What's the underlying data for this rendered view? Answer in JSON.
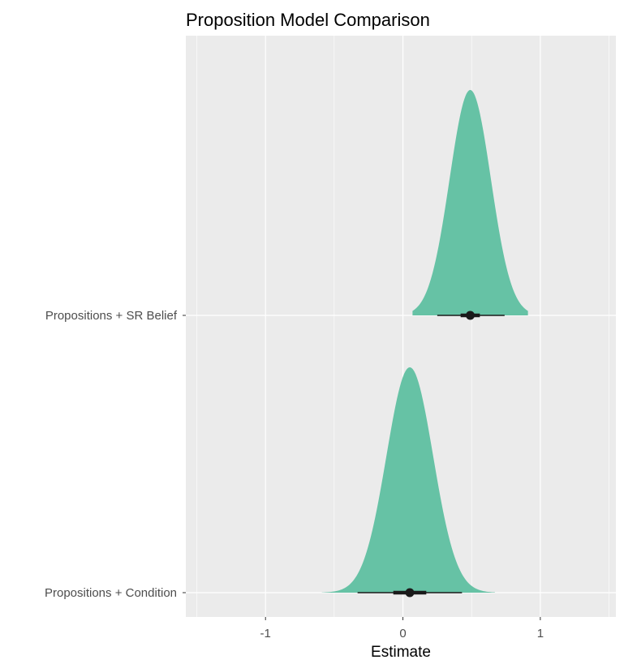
{
  "chart_data": {
    "type": "halfeye",
    "title": "Proposition Model Comparison",
    "xlabel": "Estimate",
    "ylabel": "",
    "xlim": [
      -1.58,
      1.55
    ],
    "x_ticks": [
      -1,
      0,
      1
    ],
    "x_tick_labels": [
      "-1",
      "0",
      "1"
    ],
    "grid": true,
    "background": "#ebebeb",
    "grid_color": "#ffffff",
    "fill_color": "#66c2a5",
    "point_color": "#1a1a1a",
    "categories": [
      "Propositions + SR Belief",
      "Propositions + Condition"
    ],
    "series": [
      {
        "category": "Propositions + SR Belief",
        "point_estimate": 0.49,
        "interval_66": [
          0.42,
          0.56
        ],
        "interval_95": [
          0.25,
          0.74
        ],
        "density_range": [
          0.07,
          0.91
        ],
        "density_sd": 0.15
      },
      {
        "category": "Propositions + Condition",
        "point_estimate": 0.05,
        "interval_66": [
          -0.07,
          0.17
        ],
        "interval_95": [
          -0.33,
          0.43
        ],
        "density_range": [
          -0.59,
          0.67
        ],
        "density_sd": 0.17
      }
    ]
  }
}
